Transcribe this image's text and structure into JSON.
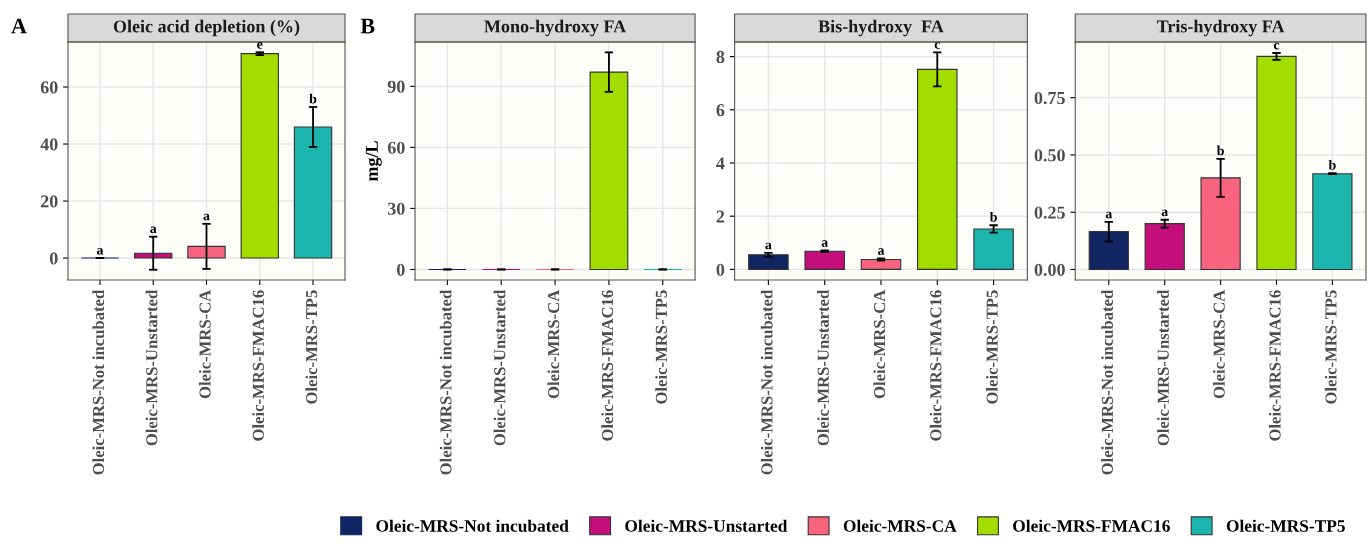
{
  "chart_data": [
    {
      "type": "bar",
      "title": "Oleic acid depletion (%)",
      "categories": [
        "Oleic-MRS-Not incubated",
        "Oleic-MRS-Unstarted",
        "Oleic-MRS-CA",
        "Oleic-MRS-FMAC16",
        "Oleic-MRS-TP5"
      ],
      "ylim": [
        -7.7,
        75.8
      ],
      "yticks": [
        0,
        20,
        40,
        60
      ],
      "grid": true,
      "legend": "bottom",
      "annotations": [
        "A"
      ],
      "series": [
        {
          "name": "Oleic-MRS-Not incubated",
          "color": "#122563",
          "values": [
            0,
            null,
            null,
            null,
            null
          ],
          "errors": [
            0,
            null,
            null,
            null,
            null
          ],
          "value_labels": [
            "a",
            null,
            null,
            null,
            null
          ]
        },
        {
          "name": "Oleic-MRS-Unstarted",
          "color": "#c40f7a",
          "values": [
            null,
            1.7,
            null,
            null,
            null
          ],
          "errors": [
            null,
            5.8,
            null,
            null,
            null
          ],
          "value_labels": [
            null,
            "a",
            null,
            null,
            null
          ]
        },
        {
          "name": "Oleic-MRS-CA",
          "color": "#f8647e",
          "values": [
            null,
            null,
            4.1,
            null,
            null
          ],
          "errors": [
            null,
            null,
            7.9,
            null,
            null
          ],
          "value_labels": [
            null,
            null,
            "a",
            null,
            null
          ]
        },
        {
          "name": "Oleic-MRS-FMAC16",
          "color": "#a3dd00",
          "values": [
            null,
            null,
            null,
            71.7,
            null
          ],
          "errors": [
            null,
            null,
            null,
            0.5,
            null
          ],
          "value_labels": [
            null,
            null,
            null,
            "e",
            null
          ]
        },
        {
          "name": "Oleic-MRS-TP5",
          "color": "#1bb5ad",
          "values": [
            null,
            null,
            null,
            null,
            46
          ],
          "errors": [
            null,
            null,
            null,
            null,
            7
          ],
          "value_labels": [
            null,
            null,
            null,
            null,
            "b"
          ]
        }
      ]
    },
    {
      "type": "bar",
      "title": "Mono-hydroxy FA",
      "ylabel": "mg/L",
      "categories": [
        "Oleic-MRS-Not incubated",
        "Oleic-MRS-Unstarted",
        "Oleic-MRS-CA",
        "Oleic-MRS-FMAC16",
        "Oleic-MRS-TP5"
      ],
      "ylim": [
        -5.2,
        111.8
      ],
      "yticks": [
        0,
        30,
        60,
        90
      ],
      "grid": true,
      "annotations": [
        "B"
      ],
      "series": [
        {
          "color": "#122563",
          "values": [
            0,
            null,
            null,
            null,
            null
          ],
          "errors": [
            0,
            null,
            null,
            null,
            null
          ]
        },
        {
          "color": "#c40f7a",
          "values": [
            null,
            0,
            null,
            null,
            null
          ],
          "errors": [
            null,
            0,
            null,
            null,
            null
          ]
        },
        {
          "color": "#f8647e",
          "values": [
            null,
            null,
            0,
            null,
            null
          ],
          "errors": [
            null,
            null,
            0,
            null,
            null
          ]
        },
        {
          "color": "#a3dd00",
          "values": [
            null,
            null,
            null,
            97,
            null
          ],
          "errors": [
            null,
            null,
            null,
            9.7,
            null
          ]
        },
        {
          "color": "#1bb5ad",
          "values": [
            null,
            null,
            null,
            null,
            0
          ],
          "errors": [
            null,
            null,
            null,
            null,
            0
          ]
        }
      ]
    },
    {
      "type": "bar",
      "title": "Bis-hydroxy  FA",
      "categories": [
        "Oleic-MRS-Not incubated",
        "Oleic-MRS-Unstarted",
        "Oleic-MRS-CA",
        "Oleic-MRS-FMAC16",
        "Oleic-MRS-TP5"
      ],
      "ylim": [
        -0.4,
        8.55
      ],
      "yticks": [
        0,
        2,
        4,
        6,
        8
      ],
      "grid": true,
      "series": [
        {
          "color": "#122563",
          "values": [
            0.55,
            null,
            null,
            null,
            null
          ],
          "errors": [
            0.07,
            null,
            null,
            null,
            null
          ],
          "value_labels": [
            "a",
            null,
            null,
            null,
            null
          ]
        },
        {
          "color": "#c40f7a",
          "values": [
            null,
            0.68,
            null,
            null,
            null
          ],
          "errors": [
            null,
            0.03,
            null,
            null,
            null
          ],
          "value_labels": [
            null,
            "a",
            null,
            null,
            null
          ]
        },
        {
          "color": "#f8647e",
          "values": [
            null,
            null,
            0.37,
            null,
            null
          ],
          "errors": [
            null,
            null,
            0.04,
            null,
            null
          ],
          "value_labels": [
            null,
            null,
            "a",
            null,
            null
          ]
        },
        {
          "color": "#a3dd00",
          "values": [
            null,
            null,
            null,
            7.52,
            null
          ],
          "errors": [
            null,
            null,
            null,
            0.64,
            null
          ],
          "value_labels": [
            null,
            null,
            null,
            "c",
            null
          ]
        },
        {
          "color": "#1bb5ad",
          "values": [
            null,
            null,
            null,
            null,
            1.52
          ],
          "errors": [
            null,
            null,
            null,
            null,
            0.14
          ],
          "value_labels": [
            null,
            null,
            null,
            null,
            "b"
          ]
        }
      ]
    },
    {
      "type": "bar",
      "title": "Tris-hydroxy FA",
      "categories": [
        "Oleic-MRS-Not incubated",
        "Oleic-MRS-Unstarted",
        "Oleic-MRS-CA",
        "Oleic-MRS-FMAC16",
        "Oleic-MRS-TP5"
      ],
      "ylim": [
        -0.046,
        0.993
      ],
      "yticks": [
        {
          "value": 0,
          "label": "0.00"
        },
        {
          "value": 0.25,
          "label": "0.25"
        },
        {
          "value": 0.5,
          "label": "0.50"
        },
        {
          "value": 0.75,
          "label": "0.75"
        }
      ],
      "grid": true,
      "series": [
        {
          "color": "#122563",
          "values": [
            0.165,
            null,
            null,
            null,
            null
          ],
          "errors": [
            0.043,
            null,
            null,
            null,
            null
          ],
          "value_labels": [
            "a",
            null,
            null,
            null,
            null
          ]
        },
        {
          "color": "#c40f7a",
          "values": [
            null,
            0.2,
            null,
            null,
            null
          ],
          "errors": [
            null,
            0.017,
            null,
            null,
            null
          ],
          "value_labels": [
            null,
            "a",
            null,
            null,
            null
          ]
        },
        {
          "color": "#f8647e",
          "values": [
            null,
            null,
            0.4,
            null,
            null
          ],
          "errors": [
            null,
            null,
            0.083,
            null,
            null
          ],
          "value_labels": [
            null,
            null,
            "b",
            null,
            null
          ]
        },
        {
          "color": "#a3dd00",
          "values": [
            null,
            null,
            null,
            0.93,
            null
          ],
          "errors": [
            null,
            null,
            null,
            0.015,
            null
          ],
          "value_labels": [
            null,
            null,
            null,
            "c",
            null
          ]
        },
        {
          "color": "#1bb5ad",
          "values": [
            null,
            null,
            null,
            null,
            0.418
          ],
          "errors": [
            null,
            null,
            null,
            null,
            0.002
          ],
          "value_labels": [
            null,
            null,
            null,
            null,
            "b"
          ]
        }
      ]
    }
  ]
}
